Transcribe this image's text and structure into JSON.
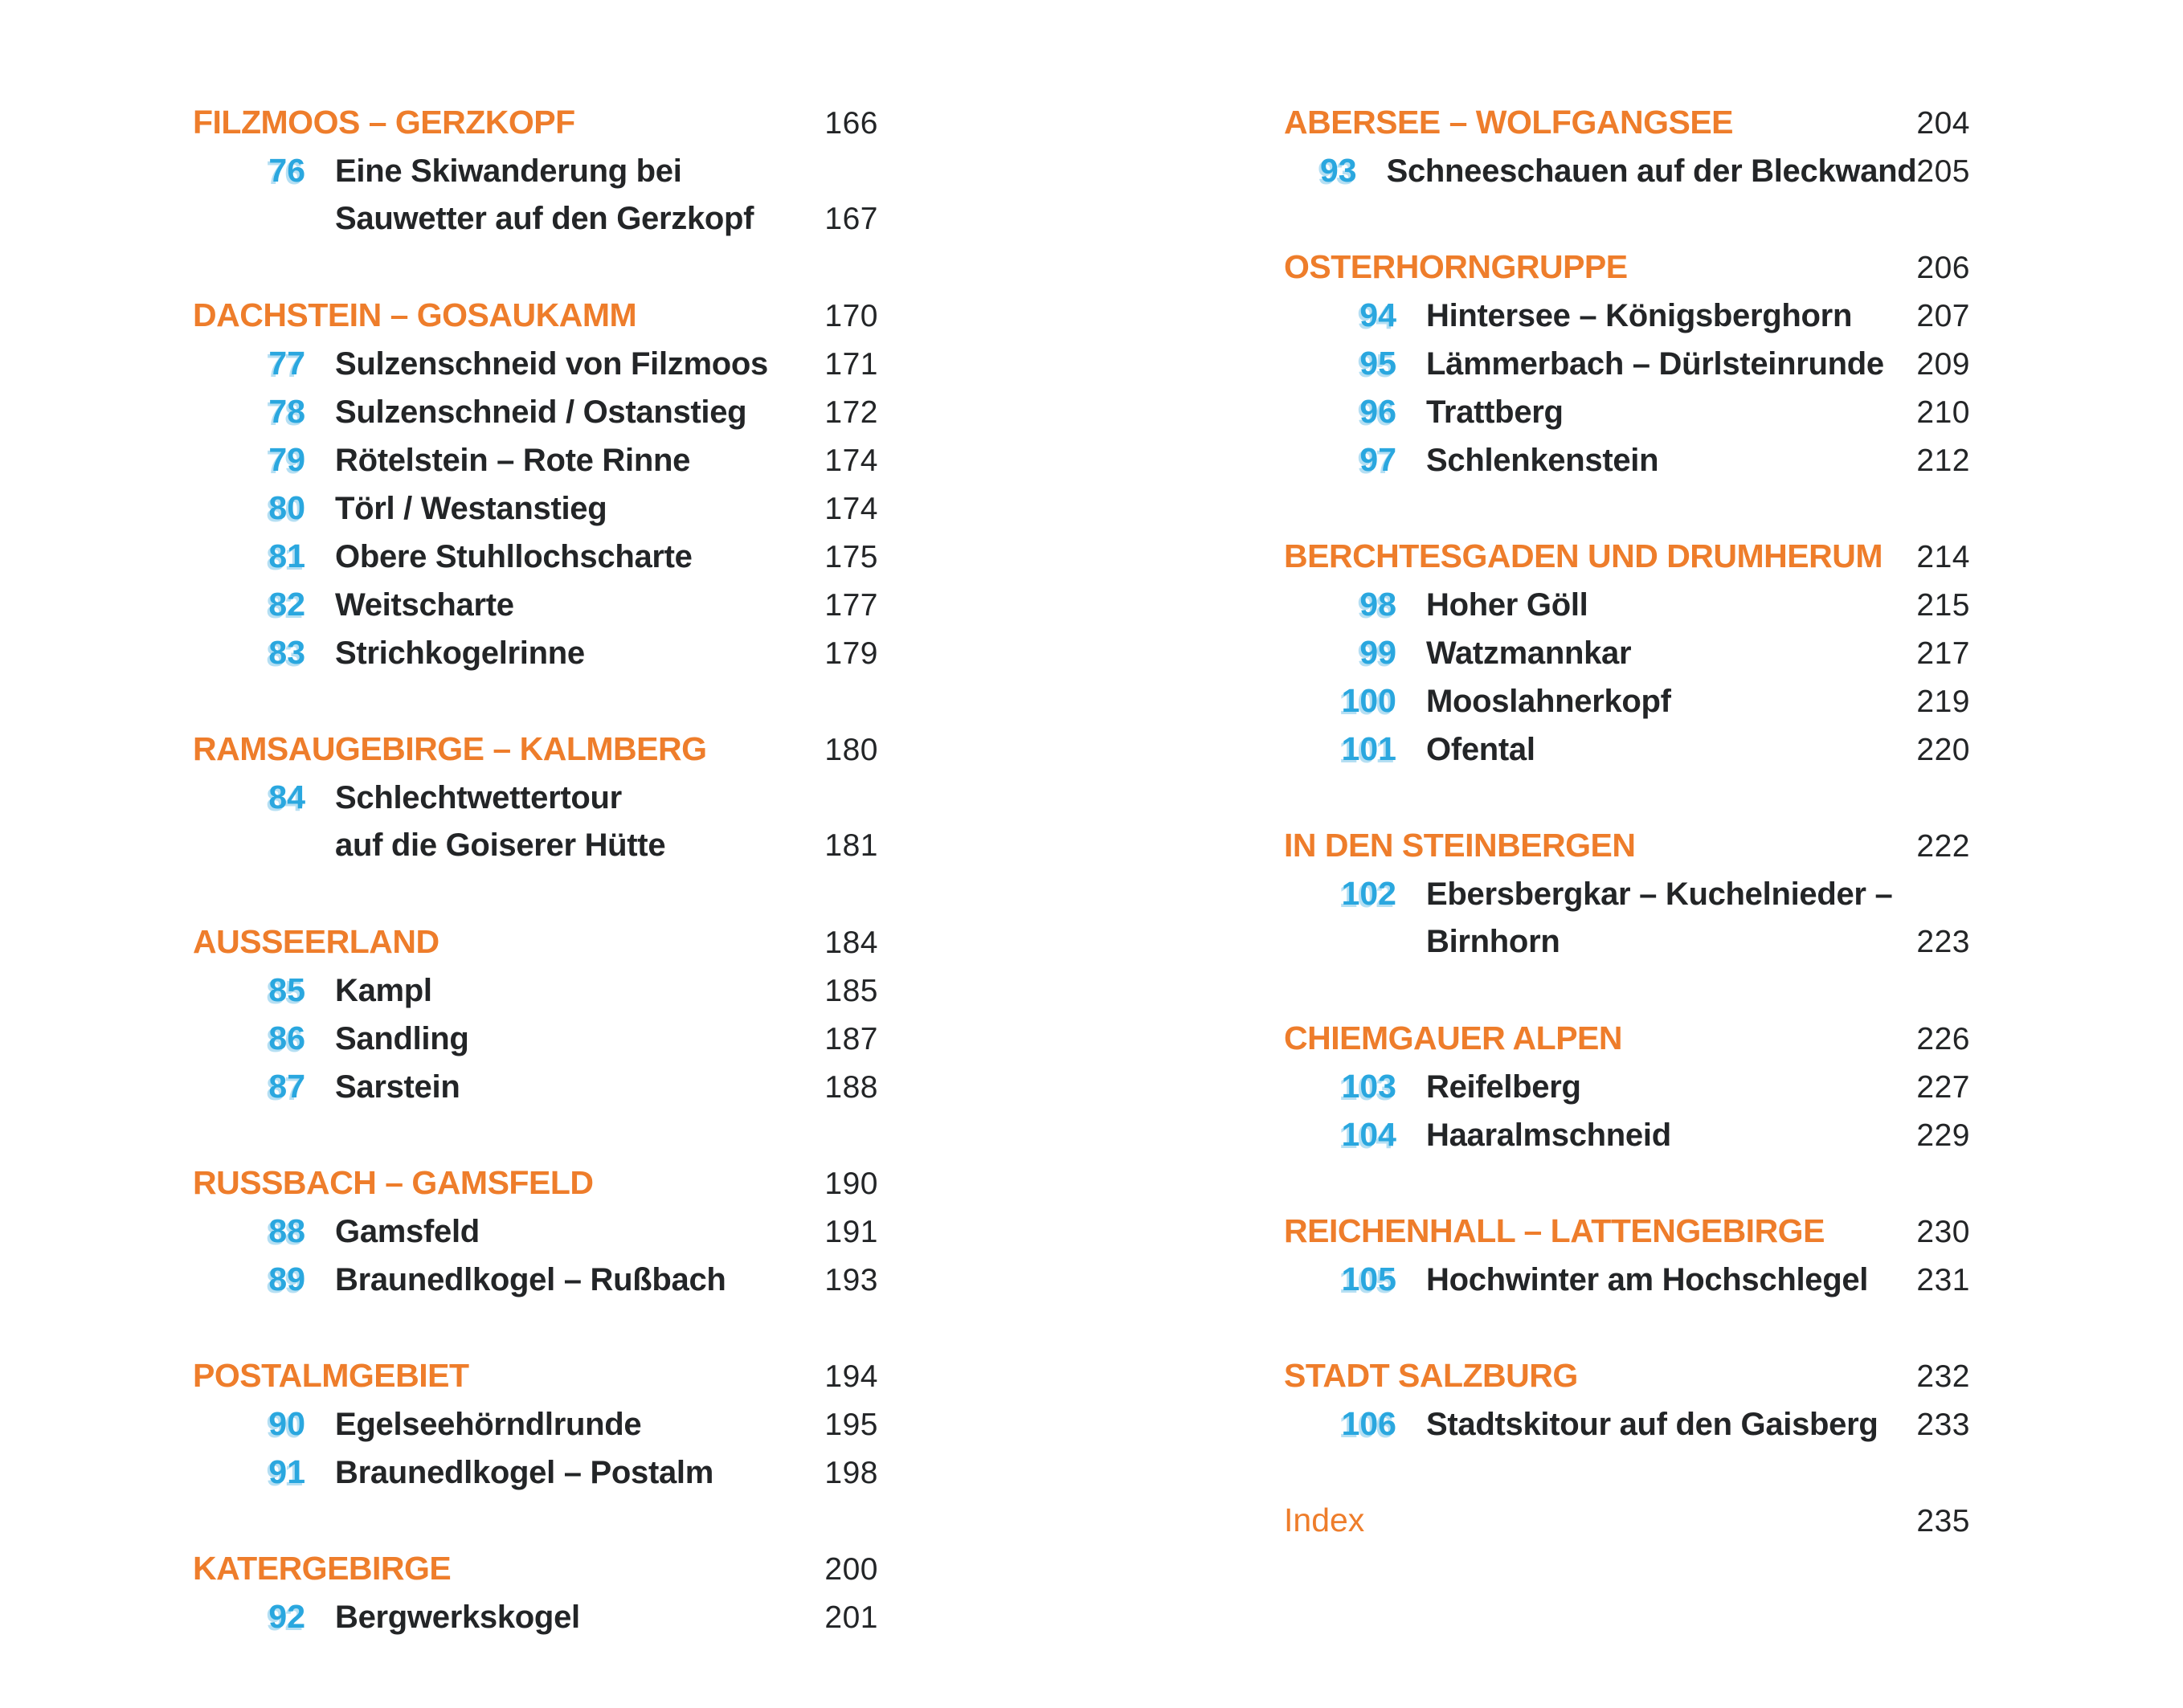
{
  "document": {
    "kind": "book-table-of-contents",
    "colors": {
      "header_orange": "#EE7D2B",
      "number_blue": "#2AA7DF",
      "number_shadow_blue": "#B5DFF3",
      "text_dark": "#232527",
      "background": "#FFFFFF"
    },
    "columns": [
      {
        "side": "left",
        "sections": [
          {
            "header": "FILZMOOS – GERZKOPF",
            "page": "166",
            "entries": [
              {
                "num": "76",
                "lines": [
                  "Eine Skiwanderung bei",
                  "Sauwetter auf den Gerzkopf"
                ],
                "page": "167"
              }
            ]
          },
          {
            "header": "DACHSTEIN – GOSAUKAMM",
            "page": "170",
            "entries": [
              {
                "num": "77",
                "lines": [
                  "Sulzenschneid von Filzmoos"
                ],
                "page": "171"
              },
              {
                "num": "78",
                "lines": [
                  "Sulzenschneid / Ostanstieg"
                ],
                "page": "172"
              },
              {
                "num": "79",
                "lines": [
                  "Rötelstein – Rote Rinne"
                ],
                "page": "174"
              },
              {
                "num": "80",
                "lines": [
                  "Törl / Westanstieg"
                ],
                "page": "174"
              },
              {
                "num": "81",
                "lines": [
                  "Obere Stuhllochscharte"
                ],
                "page": "175"
              },
              {
                "num": "82",
                "lines": [
                  "Weitscharte"
                ],
                "page": "177"
              },
              {
                "num": "83",
                "lines": [
                  "Strichkogelrinne"
                ],
                "page": "179"
              }
            ]
          },
          {
            "header": "RAMSAUGEBIRGE – KALMBERG",
            "page": "180",
            "entries": [
              {
                "num": "84",
                "lines": [
                  "Schlechtwettertour",
                  "auf die Goiserer Hütte"
                ],
                "page": "181"
              }
            ]
          },
          {
            "header": "AUSSEERLAND",
            "page": "184",
            "entries": [
              {
                "num": "85",
                "lines": [
                  "Kampl"
                ],
                "page": "185"
              },
              {
                "num": "86",
                "lines": [
                  "Sandling"
                ],
                "page": "187"
              },
              {
                "num": "87",
                "lines": [
                  "Sarstein"
                ],
                "page": "188"
              }
            ]
          },
          {
            "header": "RUSSBACH – GAMSFELD",
            "page": "190",
            "entries": [
              {
                "num": "88",
                "lines": [
                  "Gamsfeld"
                ],
                "page": "191"
              },
              {
                "num": "89",
                "lines": [
                  "Braunedlkogel – Rußbach"
                ],
                "page": "193"
              }
            ]
          },
          {
            "header": "POSTALMGEBIET",
            "page": "194",
            "entries": [
              {
                "num": "90",
                "lines": [
                  "Egelseehörndlrunde"
                ],
                "page": "195"
              },
              {
                "num": "91",
                "lines": [
                  "Braunedlkogel – Postalm"
                ],
                "page": "198"
              }
            ]
          },
          {
            "header": "KATERGEBIRGE",
            "page": "200",
            "entries": [
              {
                "num": "92",
                "lines": [
                  "Bergwerkskogel"
                ],
                "page": "201"
              }
            ]
          }
        ]
      },
      {
        "side": "right",
        "sections": [
          {
            "header": "ABERSEE – WOLFGANGSEE",
            "page": "204",
            "entries": [
              {
                "num": "93",
                "lines": [
                  "Schneeschauen auf der Bleckwand"
                ],
                "page": "205"
              }
            ]
          },
          {
            "header": "OSTERHORNGRUPPE",
            "page": "206",
            "entries": [
              {
                "num": "94",
                "lines": [
                  "Hintersee – Königsberghorn"
                ],
                "page": "207"
              },
              {
                "num": "95",
                "lines": [
                  "Lämmerbach – Dürlsteinrunde"
                ],
                "page": "209"
              },
              {
                "num": "96",
                "lines": [
                  "Trattberg"
                ],
                "page": "210"
              },
              {
                "num": "97",
                "lines": [
                  "Schlenkenstein"
                ],
                "page": "212"
              }
            ]
          },
          {
            "header": "BERCHTESGADEN UND DRUMHERUM",
            "page": "214",
            "entries": [
              {
                "num": "98",
                "lines": [
                  "Hoher Göll"
                ],
                "page": "215"
              },
              {
                "num": "99",
                "lines": [
                  "Watzmannkar"
                ],
                "page": "217"
              },
              {
                "num": "100",
                "lines": [
                  "Mooslahnerkopf"
                ],
                "page": "219"
              },
              {
                "num": "101",
                "lines": [
                  "Ofental"
                ],
                "page": "220"
              }
            ]
          },
          {
            "header": "IN DEN STEINBERGEN",
            "page": "222",
            "entries": [
              {
                "num": "102",
                "lines": [
                  "Ebersbergkar – Kuchelnieder –",
                  "Birnhorn"
                ],
                "page": "223"
              }
            ]
          },
          {
            "header": "CHIEMGAUER ALPEN",
            "page": "226",
            "entries": [
              {
                "num": "103",
                "lines": [
                  "Reifelberg"
                ],
                "page": "227"
              },
              {
                "num": "104",
                "lines": [
                  "Haaralmschneid"
                ],
                "page": "229"
              }
            ]
          },
          {
            "header": "REICHENHALL – LATTENGEBIRGE",
            "page": "230",
            "entries": [
              {
                "num": "105",
                "lines": [
                  "Hochwinter am Hochschlegel"
                ],
                "page": "231"
              }
            ]
          },
          {
            "header": "STADT SALZBURG",
            "page": "232",
            "entries": [
              {
                "num": "106",
                "lines": [
                  "Stadtskitour auf den Gaisberg"
                ],
                "page": "233"
              }
            ]
          },
          {
            "header": "Index",
            "page": "235",
            "variant": "index",
            "entries": []
          }
        ]
      }
    ]
  }
}
